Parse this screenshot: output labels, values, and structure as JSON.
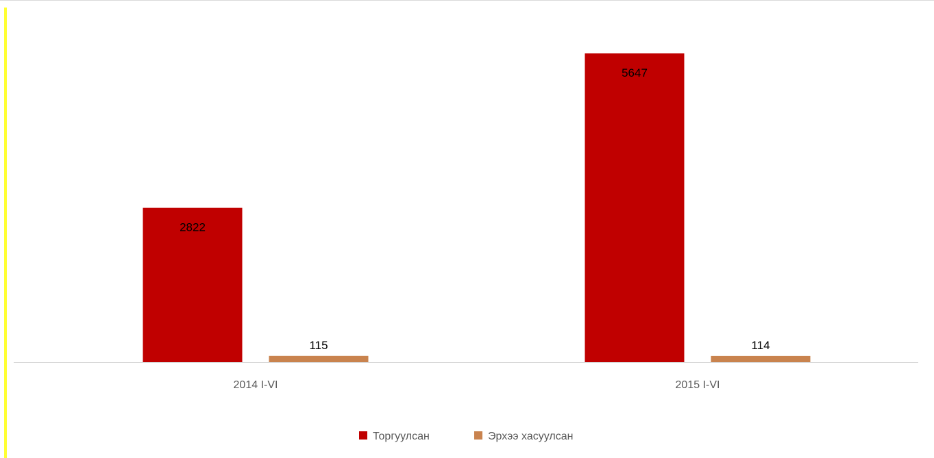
{
  "colors": {
    "accent": "#ffff33",
    "series_1": "#c00000",
    "series_2": "#c9834e",
    "axis": "#d9d9d9"
  },
  "chart_data": {
    "type": "bar",
    "categories": [
      "2014  I-VI",
      "2015 I-VI"
    ],
    "series": [
      {
        "name": "Торгуулсан",
        "values": [
          2822,
          5647
        ]
      },
      {
        "name": "Эрхээ хасуулсан",
        "values": [
          115,
          114
        ]
      }
    ],
    "ylim": [
      0,
      5647
    ],
    "data_labels": true,
    "legend": "bottom",
    "grid": false
  }
}
